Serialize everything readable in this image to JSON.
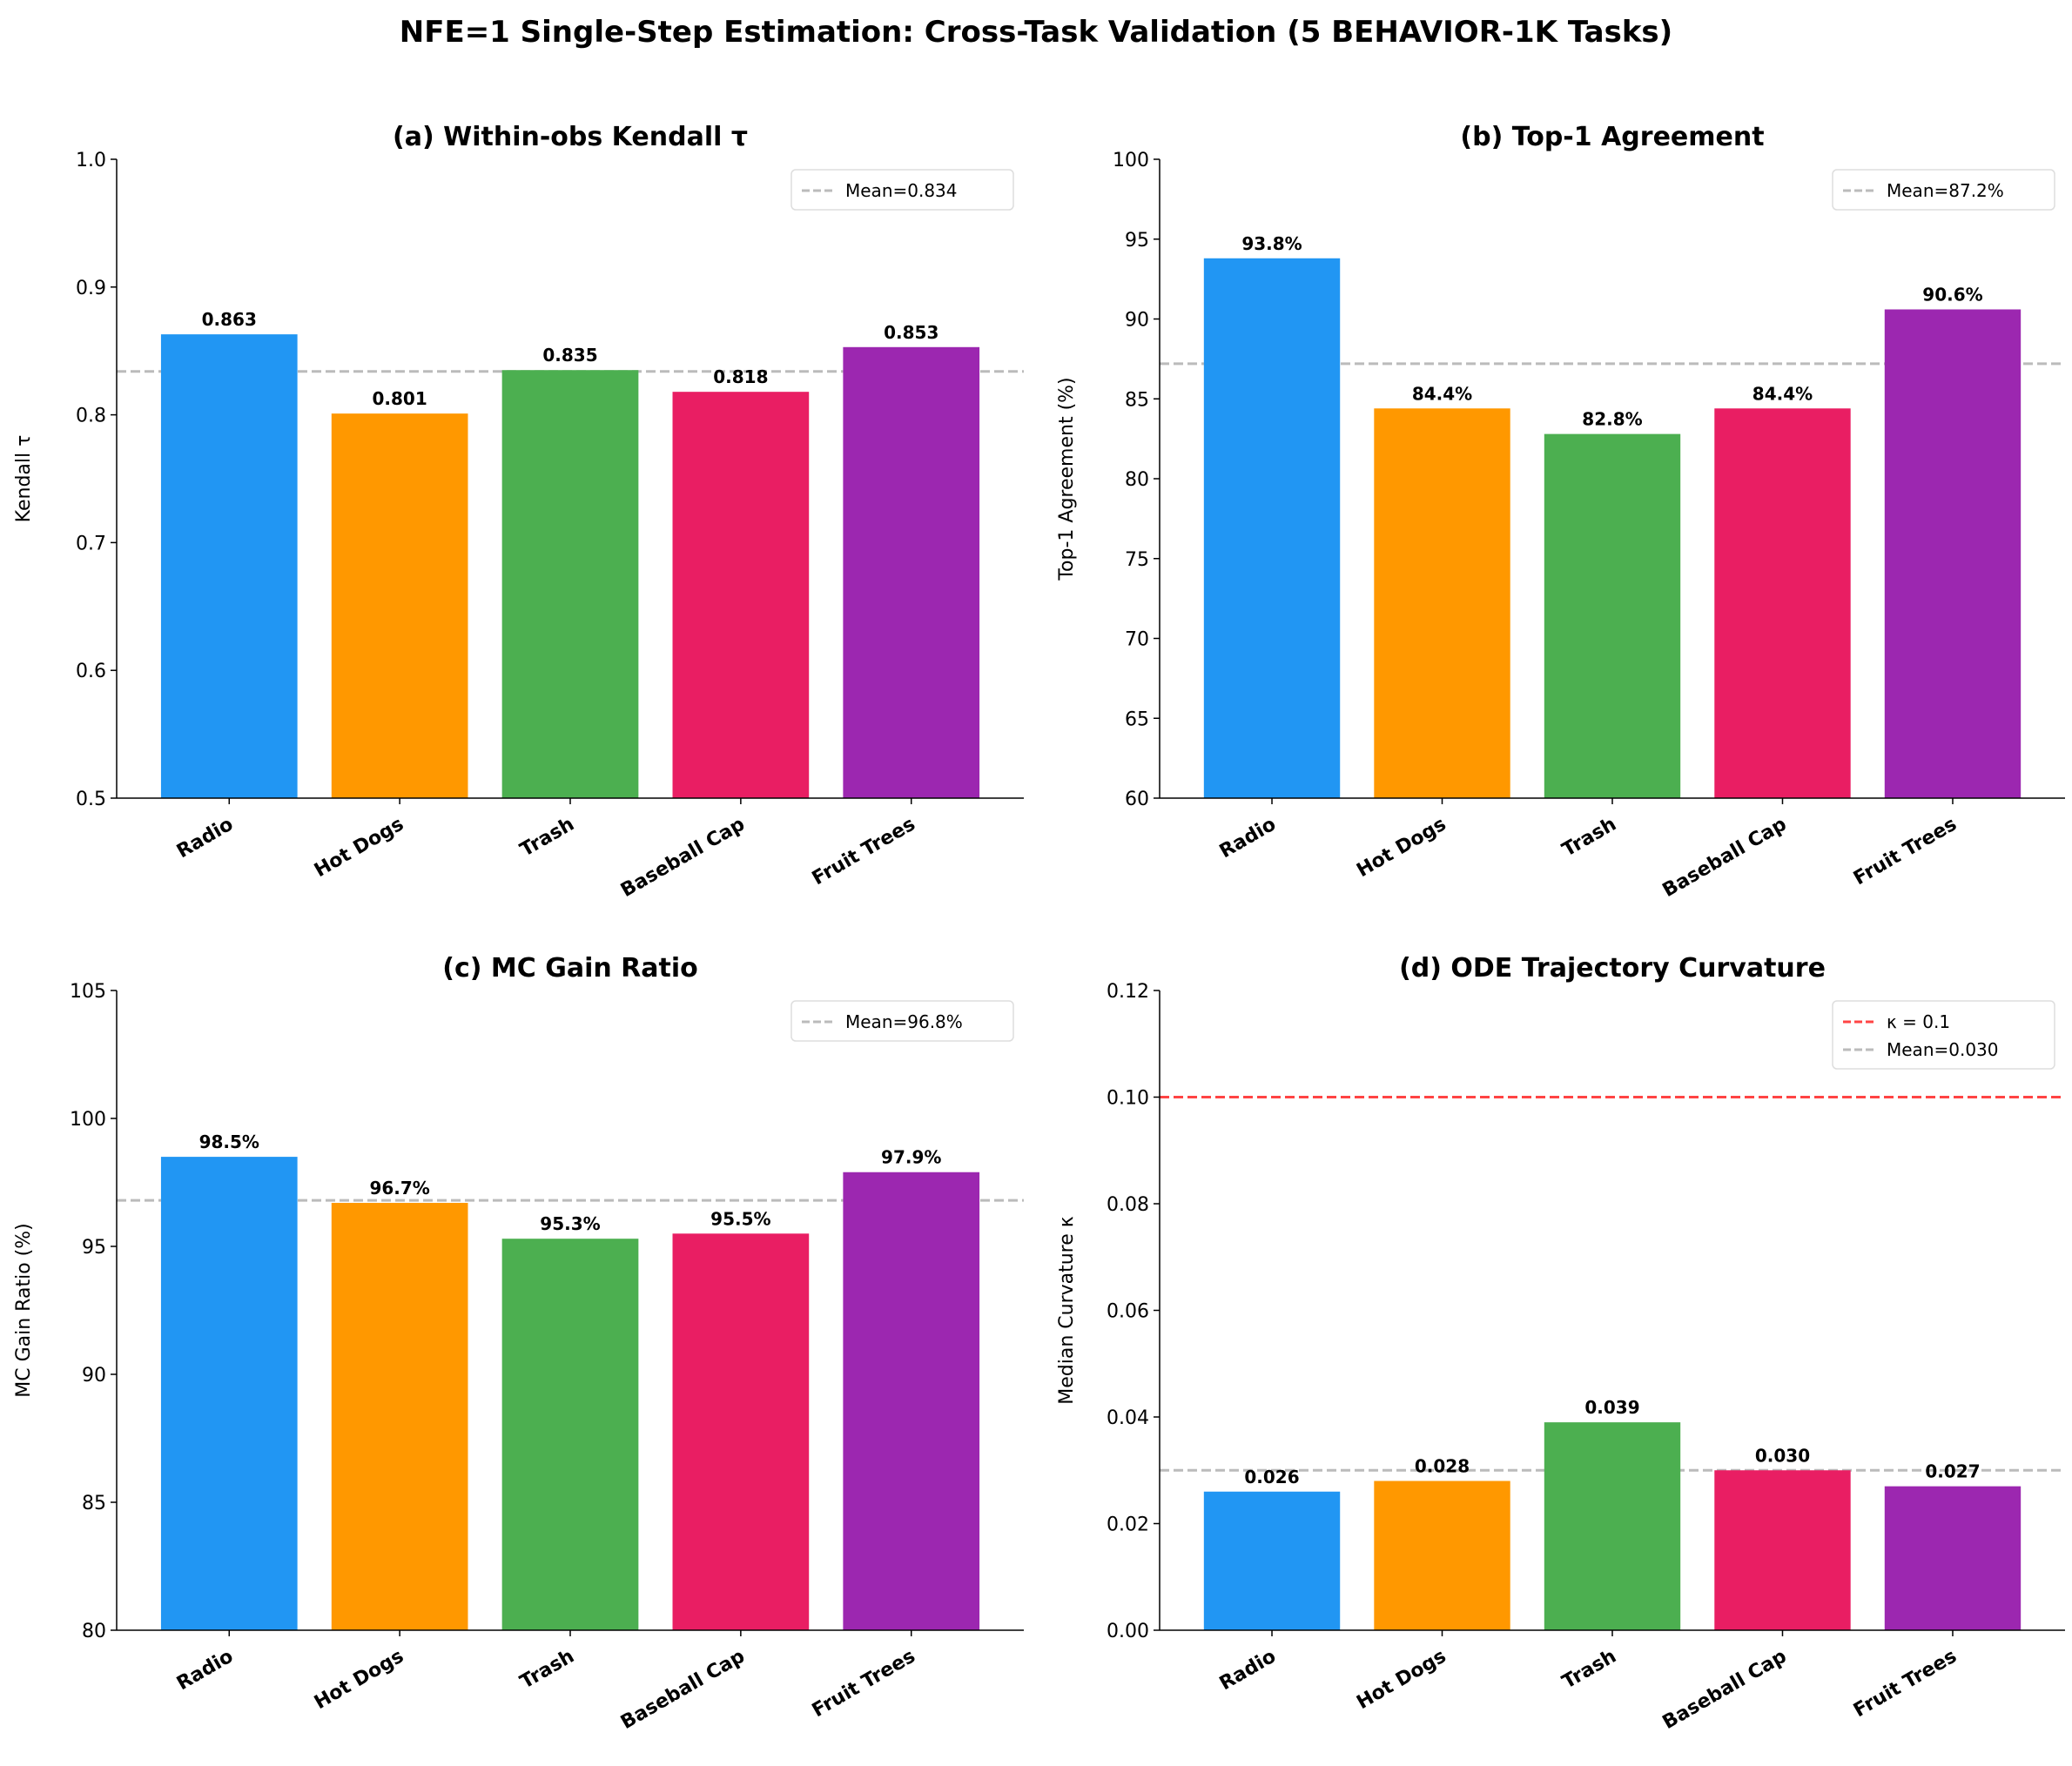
{
  "title": "NFE=1 Single-Step Estimation: Cross-Task Validation (5 BEHAVIOR-1K Tasks)",
  "colors": [
    "#2196F3",
    "#FF9800",
    "#4CAF50",
    "#E91E63",
    "#9C27B0"
  ],
  "chart_data": [
    {
      "type": "bar",
      "title": "(a) Within-obs Kendall τ",
      "ylabel": "Kendall τ",
      "categories": [
        "Radio",
        "Hot Dogs",
        "Trash",
        "Baseball Cap",
        "Fruit Trees"
      ],
      "values": [
        0.863,
        0.801,
        0.835,
        0.818,
        0.853
      ],
      "data_labels": [
        "0.863",
        "0.801",
        "0.835",
        "0.818",
        "0.853"
      ],
      "ylim": [
        0.5,
        1.0
      ],
      "yticks": [
        "0.5",
        "0.6",
        "0.7",
        "0.8",
        "0.9",
        "1.0"
      ],
      "hlines": [
        {
          "value": 0.834,
          "label": "Mean=0.834",
          "color": "#BBBBBB"
        }
      ],
      "legend": "top-right",
      "grid": false
    },
    {
      "type": "bar",
      "title": "(b) Top-1 Agreement",
      "ylabel": "Top-1 Agreement (%)",
      "categories": [
        "Radio",
        "Hot Dogs",
        "Trash",
        "Baseball Cap",
        "Fruit Trees"
      ],
      "values": [
        93.8,
        84.4,
        82.8,
        84.4,
        90.6
      ],
      "data_labels": [
        "93.8%",
        "84.4%",
        "82.8%",
        "84.4%",
        "90.6%"
      ],
      "ylim": [
        60,
        100
      ],
      "yticks": [
        "60",
        "65",
        "70",
        "75",
        "80",
        "85",
        "90",
        "95",
        "100"
      ],
      "hlines": [
        {
          "value": 87.2,
          "label": "Mean=87.2%",
          "color": "#BBBBBB"
        }
      ],
      "legend": "top-right",
      "grid": false
    },
    {
      "type": "bar",
      "title": "(c) MC Gain Ratio",
      "ylabel": "MC Gain Ratio (%)",
      "categories": [
        "Radio",
        "Hot Dogs",
        "Trash",
        "Baseball Cap",
        "Fruit Trees"
      ],
      "values": [
        98.5,
        96.7,
        95.3,
        95.5,
        97.9
      ],
      "data_labels": [
        "98.5%",
        "96.7%",
        "95.3%",
        "95.5%",
        "97.9%"
      ],
      "ylim": [
        80,
        105
      ],
      "yticks": [
        "80",
        "85",
        "90",
        "95",
        "100",
        "105"
      ],
      "hlines": [
        {
          "value": 96.8,
          "label": "Mean=96.8%",
          "color": "#BBBBBB"
        }
      ],
      "legend": "top-right",
      "grid": false
    },
    {
      "type": "bar",
      "title": "(d) ODE Trajectory Curvature",
      "ylabel": "Median Curvature κ",
      "categories": [
        "Radio",
        "Hot Dogs",
        "Trash",
        "Baseball Cap",
        "Fruit Trees"
      ],
      "values": [
        0.026,
        0.028,
        0.039,
        0.03,
        0.027
      ],
      "data_labels": [
        "0.026",
        "0.028",
        "0.039",
        "0.030",
        "0.027"
      ],
      "ylim": [
        0,
        0.12
      ],
      "yticks": [
        "0.00",
        "0.02",
        "0.04",
        "0.06",
        "0.08",
        "0.10",
        "0.12"
      ],
      "hlines": [
        {
          "value": 0.1,
          "label": "κ = 0.1",
          "color": "#FF4444"
        },
        {
          "value": 0.03,
          "label": "Mean=0.030",
          "color": "#BBBBBB"
        }
      ],
      "legend": "top-right",
      "grid": false
    }
  ]
}
